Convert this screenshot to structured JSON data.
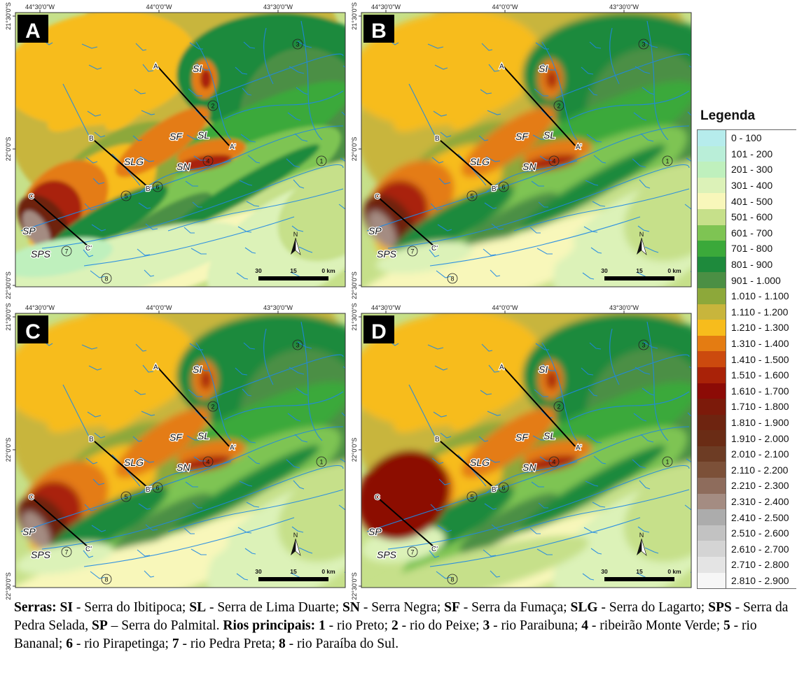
{
  "panels": [
    {
      "letter": "A",
      "top_lon": [
        "44°30'0\"W",
        "44°0'0\"W",
        "43°30'0\"W"
      ],
      "left_lat": [
        "21°30'0\"S",
        "22°0'0\"S",
        "22°30'0\"S"
      ]
    },
    {
      "letter": "B",
      "top_lon": [
        "44°30'0\"W",
        "44°0'0\"W",
        "43°30'0\"W"
      ],
      "left_lat": [
        "21°30'0\"S",
        "22°0'0\"S",
        "22°30'0\"S"
      ]
    },
    {
      "letter": "C",
      "top_lon": [
        "44°30'0\"W",
        "44°0'0\"W",
        "43°30'0\"W"
      ],
      "left_lat": [
        "21°30'0\"S",
        "22°0'0\"S",
        "22°30'0\"S"
      ]
    },
    {
      "letter": "D",
      "top_lon": [
        "44°30'0\"W",
        "44°0'0\"W",
        "43°30'0\"W"
      ],
      "left_lat": [
        "21°30'0\"S",
        "22°0'0\"S",
        "22°30'0\"S"
      ]
    }
  ],
  "map_labels": {
    "serras": [
      "SI",
      "SL",
      "SF",
      "SLG",
      "SN",
      "SP",
      "SPS"
    ],
    "profiles": [
      "A",
      "A'",
      "B",
      "B'",
      "C",
      "C'"
    ],
    "rivers": [
      "1",
      "2",
      "3",
      "4",
      "5",
      "6",
      "7",
      "8"
    ],
    "north": "N",
    "scale": [
      "30",
      "15",
      "0 km"
    ]
  },
  "legend": {
    "title": "Legenda",
    "classes": [
      {
        "label": "0 - 100",
        "color": "#b6ecec"
      },
      {
        "label": "101 - 200",
        "color": "#b9eed8"
      },
      {
        "label": "201 - 300",
        "color": "#bff0bd"
      },
      {
        "label": "301 - 400",
        "color": "#dcf2b8"
      },
      {
        "label": "401 - 500",
        "color": "#f8f7ba"
      },
      {
        "label": "501 - 600",
        "color": "#c6e08a"
      },
      {
        "label": "601 - 700",
        "color": "#7ec453"
      },
      {
        "label": "701 - 800",
        "color": "#3ba93a"
      },
      {
        "label": "801 - 900",
        "color": "#1e8a3c"
      },
      {
        "label": "901 - 1.000",
        "color": "#4b8f44"
      },
      {
        "label": "1.010 - 1.100",
        "color": "#8da83a"
      },
      {
        "label": "1.110 - 1.200",
        "color": "#c8b53c"
      },
      {
        "label": "1.210 - 1.300",
        "color": "#f7bc1c"
      },
      {
        "label": "1.310 - 1.400",
        "color": "#e47c12"
      },
      {
        "label": "1.410 - 1.500",
        "color": "#cc4a0e"
      },
      {
        "label": "1.510 - 1.600",
        "color": "#a92208"
      },
      {
        "label": "1.610 - 1.700",
        "color": "#8c0b06"
      },
      {
        "label": "1.710 - 1.800",
        "color": "#7c1a0a"
      },
      {
        "label": "1.810 - 1.900",
        "color": "#6e2410"
      },
      {
        "label": "1.910 - 2.000",
        "color": "#6a2c15"
      },
      {
        "label": "2.010 - 2.100",
        "color": "#6d3c24"
      },
      {
        "label": "2.110 - 2.200",
        "color": "#7c5038"
      },
      {
        "label": "2.210 - 2.300",
        "color": "#8e6c5c"
      },
      {
        "label": "2.310 - 2.400",
        "color": "#a48c82"
      },
      {
        "label": "2.410 - 2.500",
        "color": "#acacac"
      },
      {
        "label": "2.510 - 2.600",
        "color": "#c2c2c2"
      },
      {
        "label": "2.610 - 2.700",
        "color": "#d4d4d4"
      },
      {
        "label": "2.710 - 2.800",
        "color": "#e4e4e4"
      },
      {
        "label": "2.810 - 2.900",
        "color": "#f6f6f6"
      }
    ]
  },
  "caption": {
    "serras_label": "Serras:",
    "serras": [
      {
        "code": "SI",
        "sep": " - ",
        "name": "Serra do Ibitipoca; "
      },
      {
        "code": "SL",
        "sep": " - ",
        "name": "Serra de Lima Duarte; "
      },
      {
        "code": "SN",
        "sep": " - ",
        "name": "Serra Negra; "
      },
      {
        "code": "SF",
        "sep": " - ",
        "name": "Serra da Fumaça; "
      },
      {
        "code": "SLG",
        "sep": " - ",
        "name": "Serra do Lagarto; "
      },
      {
        "code": "SPS",
        "sep": " - ",
        "name": "Serra da Pedra Selada, "
      },
      {
        "code": "SP",
        "sep": " – ",
        "name": "Serra do Palmital. "
      }
    ],
    "rios_label": "Rios principais:",
    "rios": [
      {
        "code": "1",
        "sep": " - ",
        "name": "rio Preto; "
      },
      {
        "code": "2",
        "sep": " - ",
        "name": "rio do Peixe; "
      },
      {
        "code": "3",
        "sep": " - ",
        "name": "rio Paraibuna; "
      },
      {
        "code": "4",
        "sep": " - ",
        "name": "ribeirão Monte Verde; "
      },
      {
        "code": "5",
        "sep": " - ",
        "name": "rio Bananal; "
      },
      {
        "code": "6",
        "sep": " - ",
        "name": "rio Pirapetinga; "
      },
      {
        "code": "7",
        "sep": " - ",
        "name": "rio Pedra Preta; "
      },
      {
        "code": "8",
        "sep": " - ",
        "name": "rio Paraíba do Sul."
      }
    ]
  }
}
